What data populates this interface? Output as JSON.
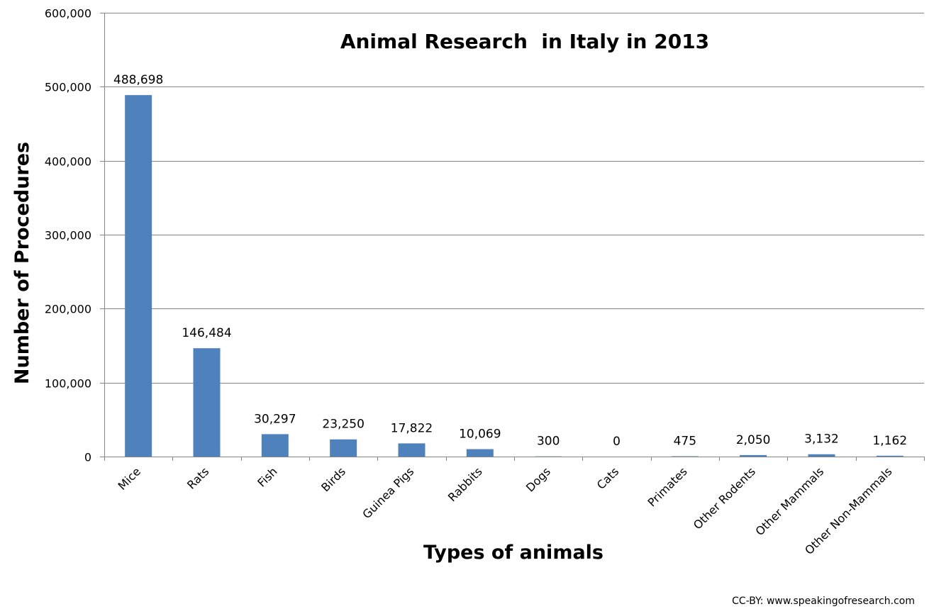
{
  "chart_data": {
    "type": "bar",
    "title": "Animal Research  in Italy in 2013",
    "xlabel": "Types of animals",
    "ylabel": "Number of Procedures",
    "ylim": [
      0,
      600000
    ],
    "yticks": [
      "0",
      "100,000",
      "200,000",
      "300,000",
      "400,000",
      "500,000",
      "600,000"
    ],
    "ytick_values": [
      0,
      100000,
      200000,
      300000,
      400000,
      500000,
      600000
    ],
    "grid": true,
    "categories": [
      "Mice",
      "Rats",
      "Fish",
      "Birds",
      "Guinea Pigs",
      "Rabbits",
      "Dogs",
      "Cats",
      "Primates",
      "Other Rodents",
      "Other Mammals",
      "Other Non-Mammals"
    ],
    "values": [
      488698,
      146484,
      30297,
      23250,
      17822,
      10069,
      300,
      0,
      475,
      2050,
      3132,
      1162
    ],
    "data_labels": [
      "488,698",
      "146,484",
      "30,297",
      "23,250",
      "17,822",
      "10,069",
      "300",
      "0",
      "475",
      "2,050",
      "3,132",
      "1,162"
    ],
    "bar_color": "#4f81bd",
    "credit": "CC-BY: www.speakingofresearch.com"
  }
}
